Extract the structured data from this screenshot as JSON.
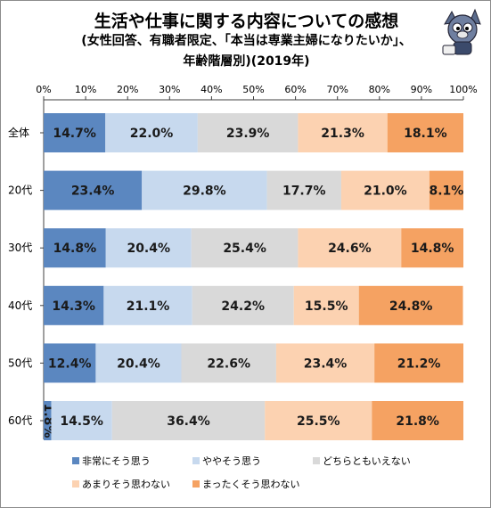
{
  "chart_data": {
    "type": "bar",
    "orientation": "horizontal",
    "stacked": true,
    "title": "生活や仕事に関する内容についての感想",
    "subtitle_line1": "(女性回答、有職者限定、「本当は専業主婦になりたいか」、",
    "subtitle_line2": "年齢階層別)(2019年)",
    "categories": [
      "全体",
      "20代",
      "30代",
      "40代",
      "50代",
      "60代"
    ],
    "xlim": [
      0,
      100
    ],
    "xticks": [
      "0%",
      "10%",
      "20%",
      "30%",
      "40%",
      "50%",
      "60%",
      "70%",
      "80%",
      "90%",
      "100%"
    ],
    "grid": false,
    "legend_position": "bottom",
    "series": [
      {
        "name": "非常にそう思う",
        "color": "#5b87c0",
        "values": [
          14.7,
          23.4,
          14.8,
          14.3,
          12.4,
          1.8
        ]
      },
      {
        "name": "ややそう思う",
        "color": "#c7d9ee",
        "values": [
          22.0,
          29.8,
          20.4,
          21.1,
          20.4,
          14.5
        ]
      },
      {
        "name": "どちらともいえない",
        "color": "#d9d9d9",
        "values": [
          23.9,
          17.7,
          25.4,
          24.2,
          22.6,
          36.4
        ]
      },
      {
        "name": "あまりそう思わない",
        "color": "#fcd2b1",
        "values": [
          21.3,
          21.0,
          24.6,
          15.5,
          23.4,
          25.5
        ]
      },
      {
        "name": "まったくそう思わない",
        "color": "#f5a262",
        "values": [
          18.1,
          8.1,
          14.8,
          24.8,
          21.2,
          21.8
        ]
      }
    ]
  }
}
